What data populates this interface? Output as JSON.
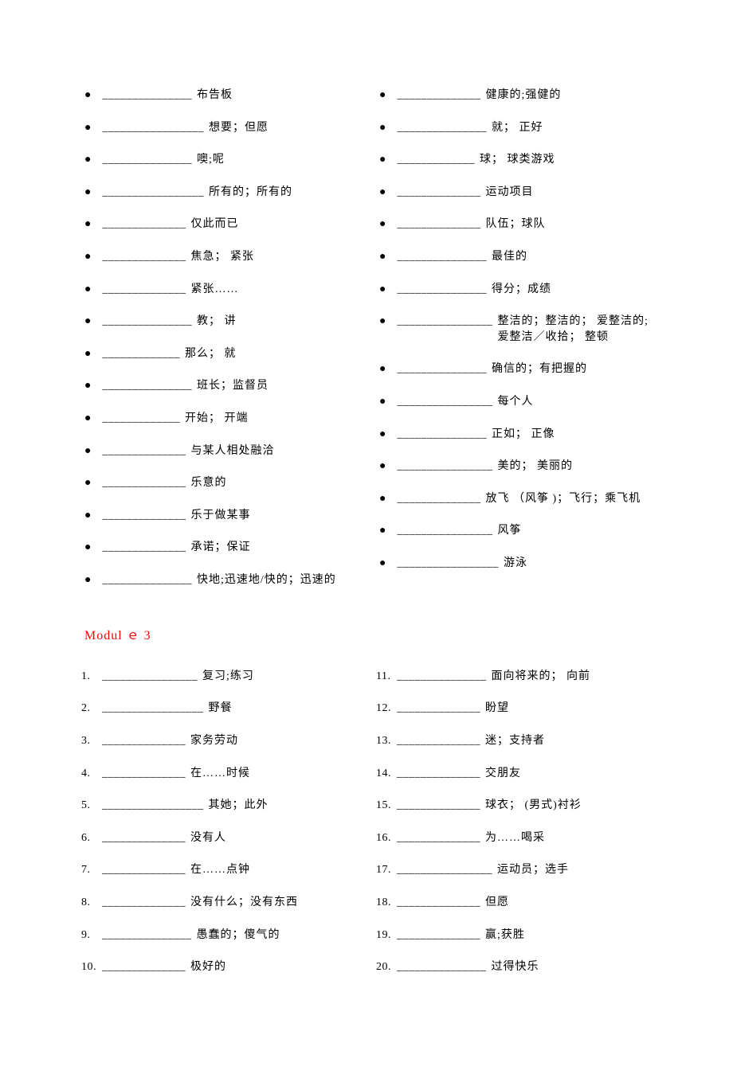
{
  "blank_seq": "_______________",
  "blank_short": "____________",
  "blank_med": "______________",
  "heading": "Modul ｅ  3",
  "section_a": {
    "left": [
      {
        "blank": "_______________",
        "def": "布告板"
      },
      {
        "blank": "_________________",
        "def": "想要；但愿"
      },
      {
        "blank": "_______________",
        "def": "噢;呢"
      },
      {
        "blank": "_________________",
        "def": "所有的；所有的"
      },
      {
        "blank": "______________",
        "def": "仅此而已"
      },
      {
        "blank": "______________",
        "def": "焦急； 紧张"
      },
      {
        "blank": "______________",
        "def": "紧张……"
      },
      {
        "blank": "_______________",
        "def": "教； 讲"
      },
      {
        "blank": "_____________",
        "def": "那么； 就"
      },
      {
        "blank": "_______________",
        "def": "班长；监督员"
      },
      {
        "blank": "_____________",
        "def": "开始； 开端"
      },
      {
        "blank": "______________",
        "def": "与某人相处融洽"
      },
      {
        "blank": "______________",
        "def": "乐意的"
      },
      {
        "blank": "______________",
        "def": "乐于做某事"
      },
      {
        "blank": "______________",
        "def": "承诺；保证"
      },
      {
        "blank": "_______________",
        "def": "快地;迅速地/快的；迅速的"
      }
    ],
    "right": [
      {
        "blank": "______________",
        "def": "健康的;强健的"
      },
      {
        "blank": "_______________",
        "def": "就； 正好"
      },
      {
        "blank": "_____________",
        "def": "球； 球类游戏"
      },
      {
        "blank": "______________",
        "def": "运动项目"
      },
      {
        "blank": "______________",
        "def": "队伍；球队"
      },
      {
        "blank": "_______________",
        "def": "最佳的"
      },
      {
        "blank": "_______________",
        "def": "得分；成绩"
      },
      {
        "blank": "________________",
        "def": "整洁的；整洁的； 爱整洁的;爱整洁／收拾； 整顿"
      },
      {
        "blank": "_______________",
        "def": "确信的；有把握的"
      },
      {
        "blank": "________________",
        "def": "每个人"
      },
      {
        "blank": "_______________",
        "def": "正如； 正像"
      },
      {
        "blank": "________________",
        "def": "美的； 美丽的"
      },
      {
        "blank": "______________",
        "def": "放飞 （风筝 )；飞行；乘飞机"
      },
      {
        "blank": "________________",
        "def": " 风筝"
      },
      {
        "blank": "_________________",
        "def": " 游泳"
      }
    ]
  },
  "section_b": {
    "left": [
      {
        "n": "1.",
        "blank": "________________",
        "def": "复习;练习"
      },
      {
        "n": "2.",
        "blank": "_________________",
        "def": "野餐"
      },
      {
        "n": "3.",
        "blank": "______________",
        "def": "家务劳动"
      },
      {
        "n": "4.",
        "blank": "______________",
        "def": "在……时候"
      },
      {
        "n": "5.",
        "blank": "_________________",
        "def": "其她；此外"
      },
      {
        "n": "6.",
        "blank": "______________",
        "def": "没有人"
      },
      {
        "n": "7.",
        "blank": "______________",
        "def": "在……点钟"
      },
      {
        "n": "8.",
        "blank": "______________",
        "def": "没有什么；没有东西"
      },
      {
        "n": "9.",
        "blank": "_______________",
        "def": "愚蠢的；傻气的"
      },
      {
        "n": "10.",
        "blank": "______________",
        "def": "极好的"
      }
    ],
    "right": [
      {
        "n": "11.",
        "blank": "_______________",
        "def": "面向将来的； 向前"
      },
      {
        "n": "12.",
        "blank": "______________",
        "def": "盼望"
      },
      {
        "n": "13.",
        "blank": "______________",
        "def": "迷；支持者"
      },
      {
        "n": "14.",
        "blank": "______________",
        "def": " 交朋友"
      },
      {
        "n": "15.",
        "blank": "______________",
        "def": "球衣；  (男式)衬衫"
      },
      {
        "n": "16.",
        "blank": "______________",
        "def": "为……喝采"
      },
      {
        "n": "17.",
        "blank": "________________",
        "def": "运动员；选手"
      },
      {
        "n": "18.",
        "blank": "______________",
        "def": "但愿"
      },
      {
        "n": "19.",
        "blank": "______________",
        "def": "赢;获胜"
      },
      {
        "n": "20.",
        "blank": "_______________",
        "def": "过得快乐"
      }
    ]
  }
}
